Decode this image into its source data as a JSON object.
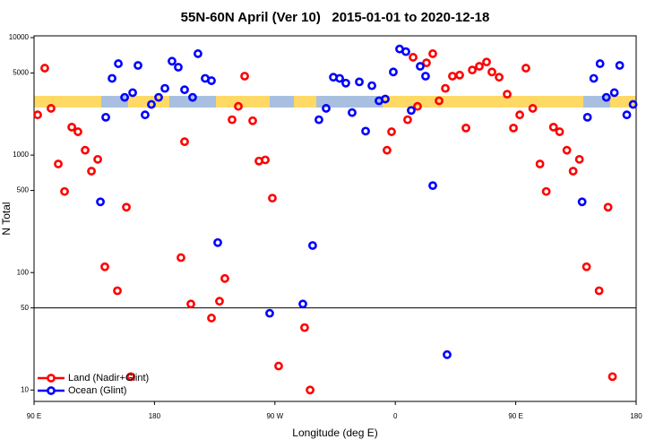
{
  "chart_data": {
    "type": "scatter",
    "title": "55N-60N April (Ver 10)   2015-01-01 to 2020-12-18",
    "xlabel": "Longitude (deg E)",
    "ylabel": "N Total",
    "xlim": [
      90,
      540
    ],
    "xticks": [
      {
        "value": 90,
        "label": "90 E"
      },
      {
        "value": 180,
        "label": "180"
      },
      {
        "value": 270,
        "label": "90 W"
      },
      {
        "value": 360,
        "label": "0"
      },
      {
        "value": 450,
        "label": "90 E"
      },
      {
        "value": 540,
        "label": "180"
      }
    ],
    "ylim": [
      8,
      10000
    ],
    "yticks": [
      10,
      50,
      100,
      500,
      1000,
      5000,
      10000
    ],
    "ylog": true,
    "hline": 50,
    "legend": "bottom-left",
    "series": [
      {
        "name": "Land (Nadir+Glint)",
        "color": "#ff0000",
        "x": [
          92.7,
          98.0,
          102.7,
          108.1,
          112.8,
          118.2,
          122.8,
          128.2,
          132.9,
          137.6,
          142.9,
          152.3,
          159.0,
          162.3,
          199.8,
          202.5,
          207.2,
          222.6,
          228.6,
          232.6,
          238.0,
          242.7,
          247.4,
          253.4,
          258.1,
          262.8,
          268.1,
          272.8,
          292.2,
          296.3,
          353.8,
          357.2,
          369.2,
          373.3,
          376.6,
          383.3,
          388.0,
          392.7,
          397.4,
          402.7,
          408.1,
          412.8,
          417.5,
          422.8,
          428.2,
          432.2,
          437.6,
          443.6,
          448.3,
          453.0,
          457.6,
          462.7,
          468.1,
          472.8,
          478.2,
          482.8,
          488.2,
          492.9,
          497.6,
          502.9,
          512.3,
          519.0,
          522.3
        ],
        "values": [
          2200,
          5500,
          2500,
          840,
          490,
          1730,
          1580,
          1100,
          730,
          920,
          112,
          70,
          360,
          13,
          134,
          1300,
          54,
          41,
          57,
          89,
          2000,
          2600,
          4700,
          1960,
          890,
          910,
          430,
          16,
          34,
          10,
          1100,
          1580,
          2000,
          6800,
          2600,
          6100,
          7300,
          2900,
          3700,
          4700,
          4800,
          1700,
          5300,
          5700,
          6200,
          5100,
          4600,
          3300,
          1700,
          2200,
          5500,
          2500,
          840,
          490,
          1730,
          1580,
          1100,
          730,
          920,
          112,
          70,
          360,
          13
        ]
      },
      {
        "name": "Ocean (Glint)",
        "color": "#0000ff",
        "x": [
          139.6,
          143.6,
          148.3,
          153.0,
          157.7,
          163.7,
          167.7,
          173.0,
          177.7,
          183.1,
          187.8,
          193.1,
          197.8,
          202.5,
          208.5,
          212.5,
          217.9,
          222.6,
          227.3,
          266.1,
          290.9,
          298.2,
          302.9,
          308.3,
          313.7,
          318.4,
          323.0,
          327.7,
          333.1,
          337.8,
          342.5,
          347.8,
          352.5,
          358.5,
          363.2,
          367.9,
          371.9,
          378.6,
          382.6,
          388.0,
          398.7,
          499.6,
          503.6,
          508.3,
          513.0,
          517.7,
          523.7,
          527.7,
          533.0,
          537.7
        ],
        "values": [
          400,
          2100,
          4500,
          6000,
          3100,
          3400,
          5800,
          2200,
          2700,
          3100,
          3700,
          6300,
          5600,
          3600,
          3100,
          7300,
          4500,
          4300,
          180,
          45,
          54,
          170,
          2000,
          2500,
          4600,
          4500,
          4100,
          2300,
          4200,
          1600,
          3900,
          2900,
          3000,
          5100,
          8000,
          7600,
          2400,
          5700,
          4700,
          550,
          20,
          400,
          2100,
          4500,
          6000,
          3100,
          3400,
          5800,
          2200,
          2700
        ]
      }
    ]
  }
}
